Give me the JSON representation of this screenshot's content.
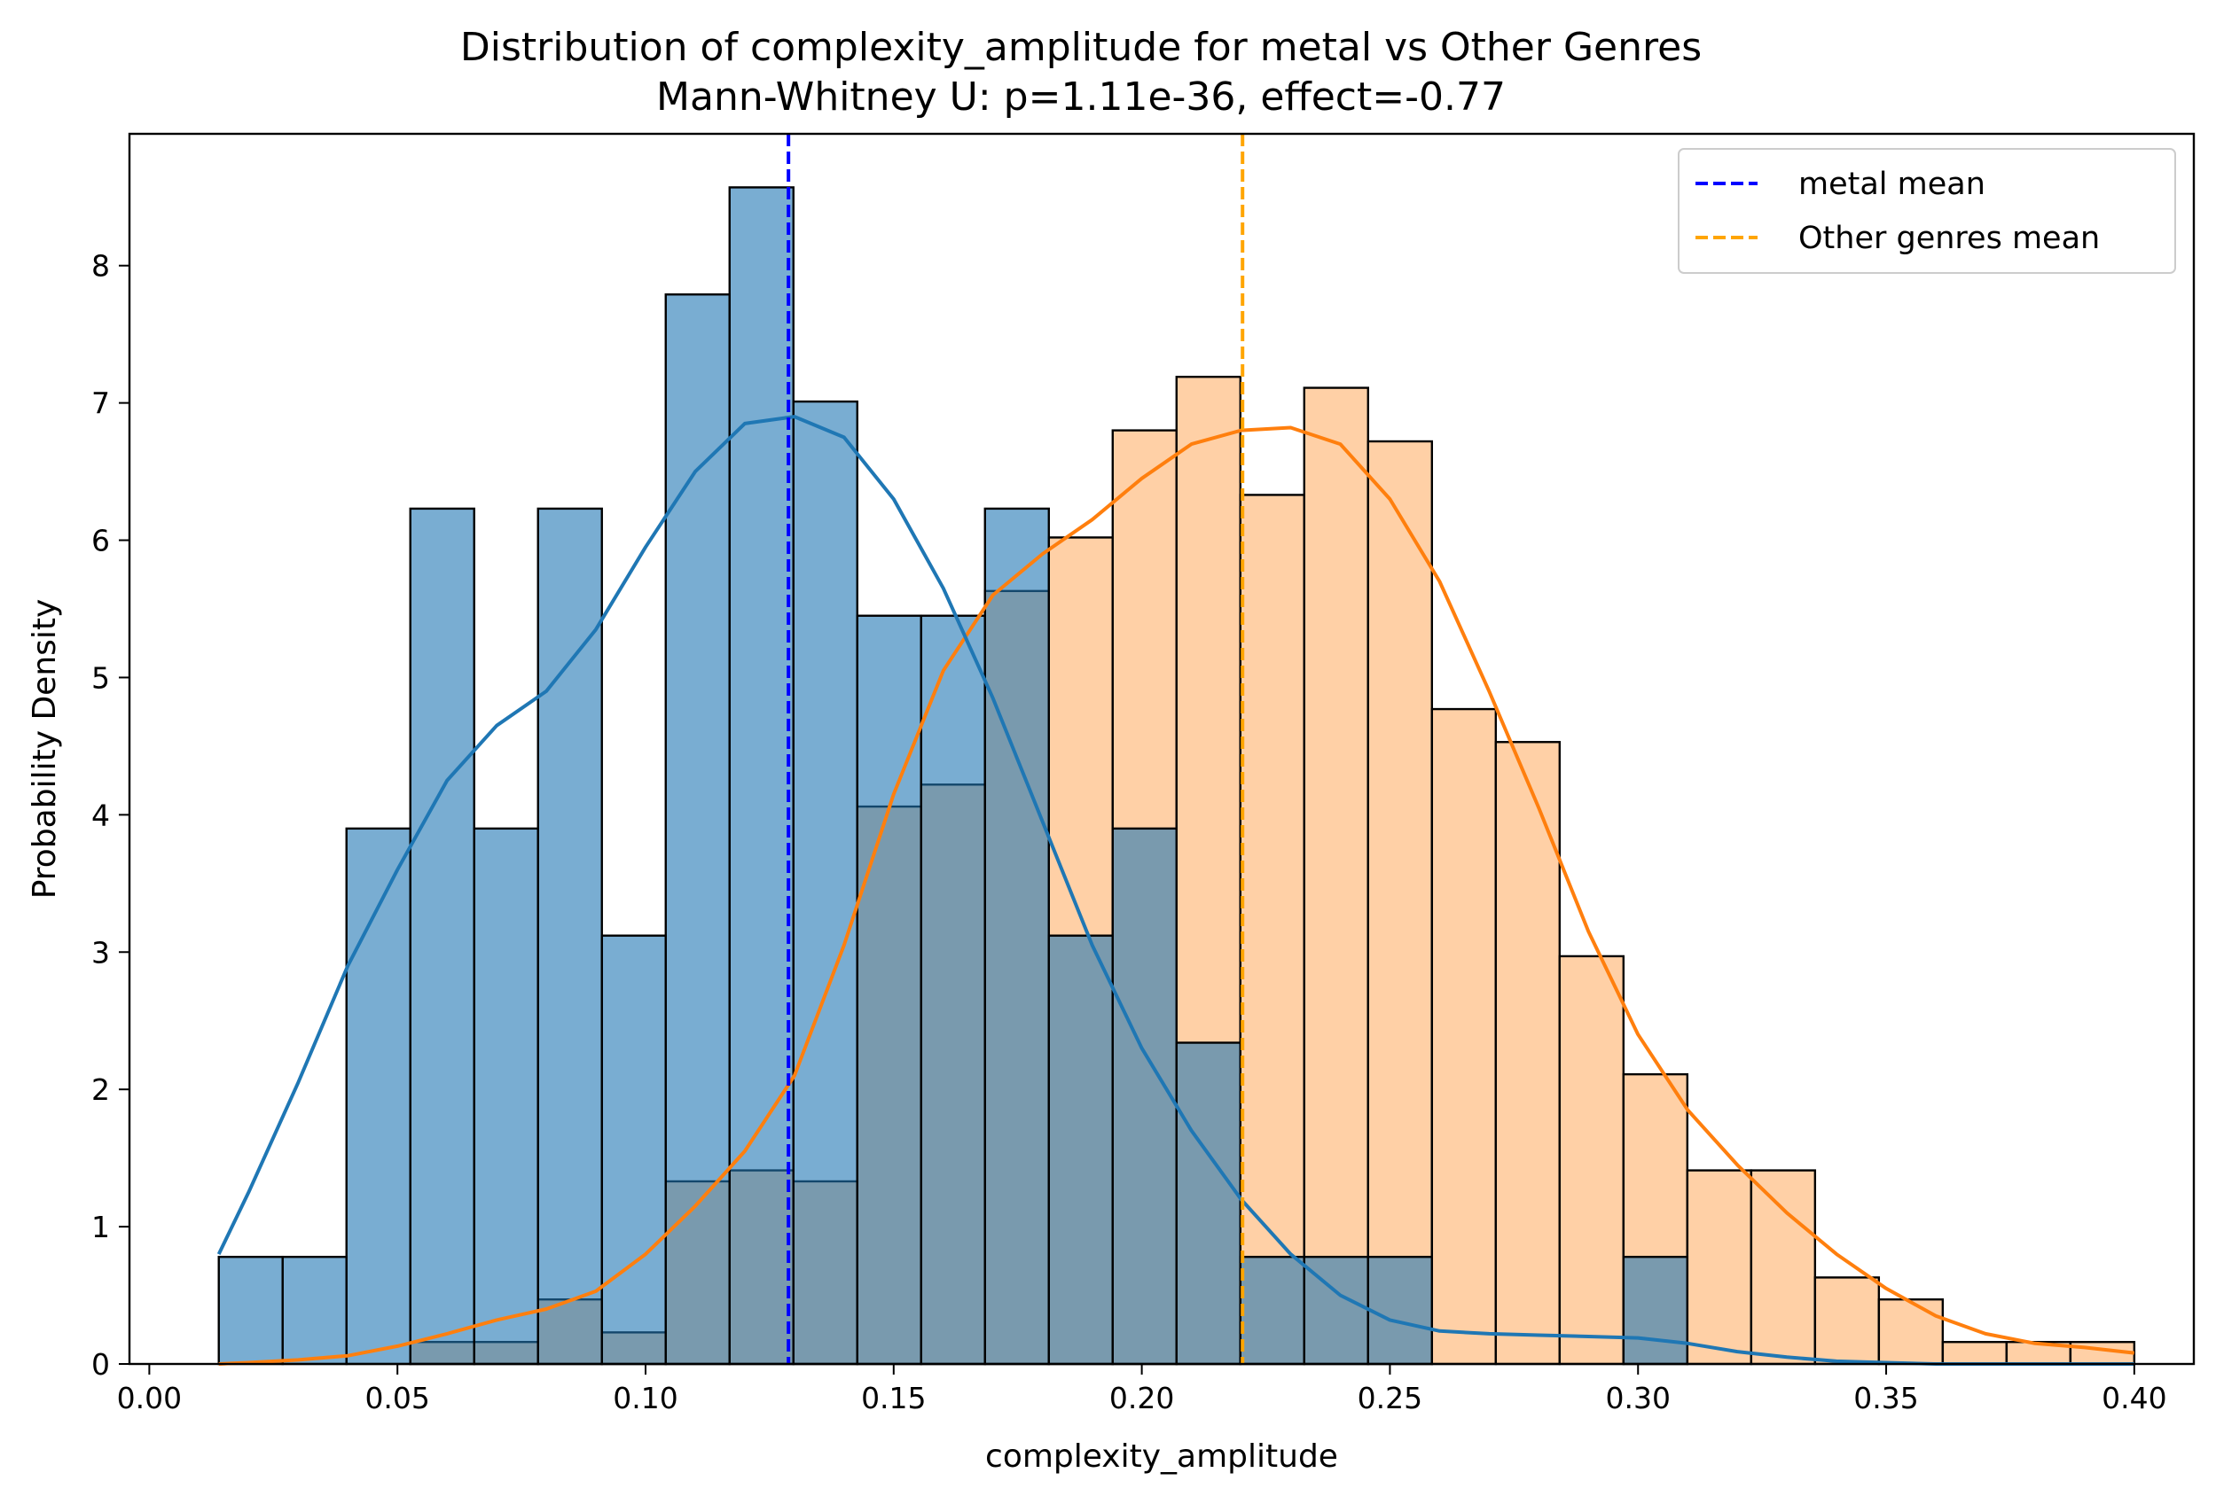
{
  "chart_data": {
    "type": "bar",
    "title": "Distribution of complexity_amplitude for metal vs Other Genres",
    "subtitle": "Mann-Whitney U: p=1.11e-36, effect=-0.77",
    "xlabel": "complexity_amplitude",
    "ylabel": "Probability Density",
    "xlim": [
      -0.004,
      0.412
    ],
    "ylim": [
      0,
      8.96
    ],
    "x_ticks": [
      0.0,
      0.05,
      0.1,
      0.15,
      0.2,
      0.25,
      0.3,
      0.35,
      0.4
    ],
    "x_tick_labels": [
      "0.00",
      "0.05",
      "0.10",
      "0.15",
      "0.20",
      "0.25",
      "0.30",
      "0.35",
      "0.40"
    ],
    "y_ticks": [
      0,
      1,
      2,
      3,
      4,
      5,
      6,
      7,
      8
    ],
    "y_tick_labels": [
      "0",
      "1",
      "2",
      "3",
      "4",
      "5",
      "6",
      "7",
      "8"
    ],
    "grid": false,
    "legend_position": "top-right",
    "legend": [
      {
        "label": "metal mean",
        "color": "#0000ff",
        "style": "dashed"
      },
      {
        "label": "Other genres mean",
        "color": "#ffa500",
        "style": "dashed"
      }
    ],
    "bin_start": 0.014,
    "bin_width": 0.0128667,
    "series": [
      {
        "name": "Other genres",
        "kind": "histogram",
        "color": "#ff7f0e",
        "fill": "#ffb06a",
        "values": [
          0,
          0,
          0,
          0.16,
          0.16,
          0.47,
          0.23,
          1.33,
          1.41,
          1.33,
          4.06,
          4.22,
          5.63,
          6.02,
          6.8,
          7.19,
          6.33,
          7.11,
          6.72,
          4.77,
          4.53,
          2.97,
          2.11,
          1.41,
          1.41,
          0.63,
          0.47,
          0.16,
          0.16,
          0.16
        ],
        "kde_x": [
          0.014,
          0.02,
          0.03,
          0.04,
          0.05,
          0.06,
          0.07,
          0.08,
          0.09,
          0.1,
          0.11,
          0.12,
          0.13,
          0.14,
          0.15,
          0.16,
          0.17,
          0.18,
          0.19,
          0.2,
          0.21,
          0.22,
          0.23,
          0.24,
          0.25,
          0.26,
          0.27,
          0.28,
          0.29,
          0.3,
          0.31,
          0.32,
          0.33,
          0.34,
          0.35,
          0.36,
          0.37,
          0.38,
          0.39,
          0.4
        ],
        "kde_y": [
          0.0,
          0.01,
          0.03,
          0.06,
          0.13,
          0.22,
          0.32,
          0.4,
          0.53,
          0.8,
          1.15,
          1.55,
          2.1,
          3.05,
          4.15,
          5.05,
          5.6,
          5.9,
          6.15,
          6.45,
          6.7,
          6.8,
          6.82,
          6.7,
          6.3,
          5.7,
          4.9,
          4.05,
          3.15,
          2.4,
          1.85,
          1.45,
          1.1,
          0.8,
          0.55,
          0.35,
          0.22,
          0.15,
          0.12,
          0.08
        ]
      },
      {
        "name": "metal",
        "kind": "histogram",
        "color": "#1f77b4",
        "fill": "#1f77b4",
        "values": [
          0.78,
          0.78,
          3.9,
          6.23,
          3.9,
          6.23,
          3.12,
          7.79,
          8.57,
          7.01,
          5.45,
          5.45,
          6.23,
          3.12,
          3.9,
          2.34,
          0.78,
          0.78,
          0.78,
          0,
          0,
          0,
          0.78,
          0,
          0,
          0,
          0,
          0,
          0,
          0
        ],
        "kde_x": [
          0.014,
          0.02,
          0.03,
          0.04,
          0.05,
          0.06,
          0.07,
          0.08,
          0.09,
          0.1,
          0.11,
          0.12,
          0.13,
          0.14,
          0.15,
          0.16,
          0.17,
          0.18,
          0.19,
          0.2,
          0.21,
          0.22,
          0.23,
          0.24,
          0.25,
          0.26,
          0.27,
          0.28,
          0.29,
          0.3,
          0.31,
          0.32,
          0.33,
          0.34,
          0.35,
          0.36,
          0.37,
          0.38,
          0.39,
          0.4
        ],
        "kde_y": [
          0.8,
          1.25,
          2.05,
          2.9,
          3.6,
          4.25,
          4.65,
          4.9,
          5.35,
          5.95,
          6.5,
          6.85,
          6.9,
          6.75,
          6.3,
          5.65,
          4.85,
          3.95,
          3.05,
          2.3,
          1.7,
          1.2,
          0.8,
          0.5,
          0.32,
          0.24,
          0.22,
          0.21,
          0.2,
          0.19,
          0.15,
          0.09,
          0.05,
          0.02,
          0.01,
          0.0,
          0.0,
          0.0,
          0.0,
          0.0
        ]
      }
    ],
    "mean_lines": [
      {
        "name": "metal mean",
        "x": 0.1288,
        "color": "#0000ff"
      },
      {
        "name": "Other genres mean",
        "x": 0.2203,
        "color": "#ffa500"
      }
    ]
  }
}
